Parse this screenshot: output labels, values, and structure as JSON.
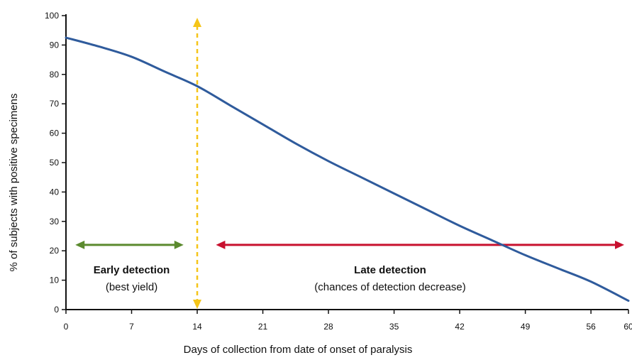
{
  "chart_data": {
    "type": "line",
    "title": "",
    "xlabel": "Days of collection from date of onset of paralysis",
    "ylabel": "% of subjects with positive specimens",
    "xlim": [
      0,
      60
    ],
    "ylim": [
      0,
      100
    ],
    "x_ticks": [
      0,
      7,
      14,
      21,
      28,
      35,
      42,
      49,
      56,
      60
    ],
    "y_ticks": [
      0,
      10,
      20,
      30,
      40,
      50,
      60,
      70,
      80,
      90,
      100
    ],
    "grid": false,
    "series": [
      {
        "color": "#2f5b9c",
        "x": [
          0,
          3.5,
          7,
          10.5,
          14,
          17.5,
          21,
          24.5,
          28,
          31.5,
          35,
          38.5,
          42,
          45.5,
          49,
          52.5,
          56,
          60
        ],
        "y": [
          92.5,
          89.5,
          86,
          81,
          76,
          69.5,
          63,
          56.5,
          50.5,
          45,
          39.5,
          34,
          28.5,
          23.5,
          18.5,
          14,
          9.5,
          3
        ]
      }
    ],
    "annotations": {
      "divider": {
        "x": 14,
        "color": "#f5c518"
      },
      "early": {
        "x_start": 1,
        "x_end": 13,
        "y": 22,
        "color": "#5b8a2e",
        "title": "Early detection",
        "subtitle": "(best yield)"
      },
      "late": {
        "x_start": 16,
        "x_end": 60,
        "y": 22,
        "color": "#c8102e",
        "title": "Late detection",
        "subtitle": "(chances of detection decrease)"
      }
    }
  }
}
